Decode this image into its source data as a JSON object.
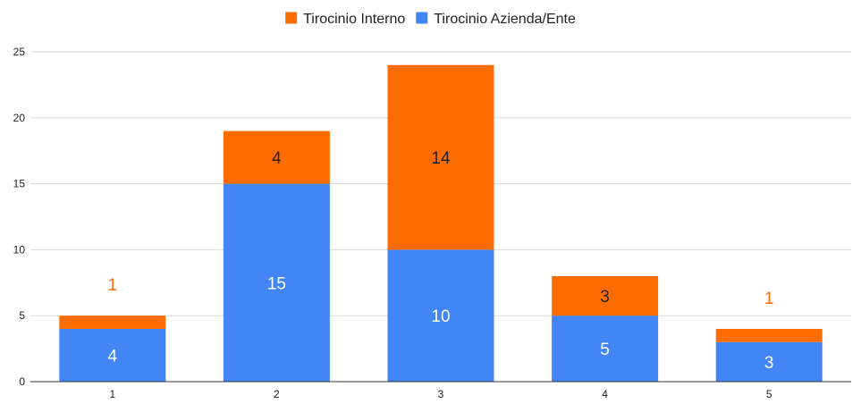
{
  "chart_data": {
    "type": "bar",
    "stacked": true,
    "categories": [
      "1",
      "2",
      "3",
      "4",
      "5"
    ],
    "series": [
      {
        "name": "Tirocinio Azienda/Ente",
        "values": [
          4,
          15,
          10,
          5,
          3
        ],
        "color": "#4285f4"
      },
      {
        "name": "Tirocinio Interno",
        "values": [
          1,
          4,
          14,
          3,
          1
        ],
        "color": "#ff6d01"
      }
    ],
    "legend_order": [
      "Tirocinio Interno",
      "Tirocinio Azienda/Ente"
    ],
    "legend_position": "top",
    "ylim": [
      0,
      25
    ],
    "yticks": [
      "0",
      "5",
      "10",
      "15",
      "20",
      "25"
    ],
    "grid": true,
    "title": "",
    "xlabel": "",
    "ylabel": ""
  }
}
